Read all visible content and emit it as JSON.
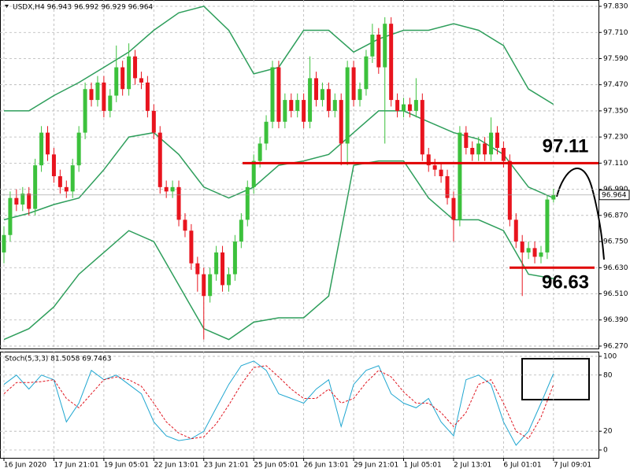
{
  "chart_data": [
    {
      "type": "candlestick",
      "title": "USDX,H4  96.943 96.992 96.929 96.964",
      "up_color": "#3cc13c",
      "down_color": "#e8141e",
      "ylim": [
        96.259,
        97.859
      ],
      "yticks": [
        {
          "value": 97.83,
          "label": "97.830"
        },
        {
          "value": 97.71,
          "label": "97.710"
        },
        {
          "value": 97.59,
          "label": "97.590"
        },
        {
          "value": 97.47,
          "label": "97.470"
        },
        {
          "value": 97.35,
          "label": "97.350"
        },
        {
          "value": 97.23,
          "label": "97.230"
        },
        {
          "value": 97.11,
          "label": "97.110"
        },
        {
          "value": 96.99,
          "label": "96.990"
        },
        {
          "value": 96.87,
          "label": "96.870"
        },
        {
          "value": 96.75,
          "label": "96.750"
        },
        {
          "value": 96.63,
          "label": "96.630"
        },
        {
          "value": 96.51,
          "label": "96.510"
        },
        {
          "value": 96.39,
          "label": "96.390"
        },
        {
          "value": 96.27,
          "label": "96.270"
        }
      ],
      "xticks": [
        {
          "value": 0,
          "label": "16 Jun 2020"
        },
        {
          "value": 8,
          "label": "17 Jun 21:01"
        },
        {
          "value": 16,
          "label": "19 Jun 05:01"
        },
        {
          "value": 24,
          "label": "22 Jun 13:01"
        },
        {
          "value": 32,
          "label": "23 Jun 21:01"
        },
        {
          "value": 40,
          "label": "25 Jun 05:01"
        },
        {
          "value": 48,
          "label": "26 Jun 13:01"
        },
        {
          "value": 56,
          "label": "29 Jun 21:01"
        },
        {
          "value": 64,
          "label": "1 Jul 05:01"
        },
        {
          "value": 72,
          "label": "2 Jul 13:01"
        },
        {
          "value": 80,
          "label": "6 Jul 01:01"
        },
        {
          "value": 88,
          "label": "7 Jul 09:01"
        }
      ],
      "grid": true,
      "ohlc": [
        [
          96.7,
          96.82,
          96.65,
          96.78
        ],
        [
          96.78,
          96.98,
          96.75,
          96.95
        ],
        [
          96.95,
          96.99,
          96.89,
          96.92
        ],
        [
          96.92,
          97.0,
          96.89,
          96.97
        ],
        [
          96.97,
          97.0,
          96.87,
          96.9
        ],
        [
          96.9,
          97.13,
          96.87,
          97.1
        ],
        [
          97.1,
          97.28,
          97.07,
          97.25
        ],
        [
          97.25,
          97.28,
          97.12,
          97.15
        ],
        [
          97.15,
          97.18,
          97.02,
          97.05
        ],
        [
          97.05,
          97.08,
          96.97,
          97.0
        ],
        [
          97.0,
          97.03,
          96.95,
          96.98
        ],
        [
          96.98,
          97.13,
          96.95,
          97.1
        ],
        [
          97.1,
          97.28,
          97.07,
          97.25
        ],
        [
          97.25,
          97.48,
          97.22,
          97.45
        ],
        [
          97.45,
          97.48,
          97.37,
          97.4
        ],
        [
          97.4,
          97.51,
          97.37,
          97.48
        ],
        [
          97.48,
          97.51,
          97.32,
          97.35
        ],
        [
          97.35,
          97.45,
          97.32,
          97.42
        ],
        [
          97.42,
          97.65,
          97.39,
          97.55
        ],
        [
          97.55,
          97.58,
          97.42,
          97.45
        ],
        [
          97.45,
          97.66,
          97.42,
          97.6
        ],
        [
          97.6,
          97.63,
          97.47,
          97.5
        ],
        [
          97.5,
          97.53,
          97.45,
          97.48
        ],
        [
          97.48,
          97.51,
          97.32,
          97.35
        ],
        [
          97.35,
          97.38,
          97.22,
          97.25
        ],
        [
          97.25,
          97.28,
          96.97,
          97.0
        ],
        [
          97.0,
          97.03,
          96.95,
          96.98
        ],
        [
          96.98,
          97.03,
          96.95,
          97.0
        ],
        [
          97.0,
          97.03,
          96.82,
          96.85
        ],
        [
          96.85,
          96.88,
          96.77,
          96.8
        ],
        [
          96.8,
          96.83,
          96.62,
          96.65
        ],
        [
          96.65,
          96.68,
          96.52,
          96.6
        ],
        [
          96.6,
          96.63,
          96.3,
          96.5
        ],
        [
          96.5,
          96.63,
          96.47,
          96.6
        ],
        [
          96.6,
          96.73,
          96.57,
          96.7
        ],
        [
          96.7,
          96.73,
          96.52,
          96.55
        ],
        [
          96.55,
          96.63,
          96.52,
          96.6
        ],
        [
          96.6,
          96.78,
          96.57,
          96.75
        ],
        [
          96.75,
          96.88,
          96.72,
          96.85
        ],
        [
          96.85,
          97.03,
          96.82,
          97.0
        ],
        [
          97.0,
          97.15,
          96.97,
          97.12
        ],
        [
          97.12,
          97.23,
          97.09,
          97.2
        ],
        [
          97.2,
          97.33,
          97.17,
          97.3
        ],
        [
          97.3,
          97.58,
          97.27,
          97.55
        ],
        [
          97.55,
          97.58,
          97.27,
          97.3
        ],
        [
          97.3,
          97.43,
          97.27,
          97.4
        ],
        [
          97.4,
          97.43,
          97.32,
          97.35
        ],
        [
          97.35,
          97.43,
          97.32,
          97.4
        ],
        [
          97.4,
          97.43,
          97.27,
          97.3
        ],
        [
          97.3,
          97.6,
          97.27,
          97.5
        ],
        [
          97.5,
          97.53,
          97.37,
          97.4
        ],
        [
          97.4,
          97.48,
          97.37,
          97.45
        ],
        [
          97.45,
          97.48,
          97.32,
          97.35
        ],
        [
          97.35,
          97.43,
          97.32,
          97.4
        ],
        [
          97.4,
          97.43,
          97.1,
          97.2
        ],
        [
          97.2,
          97.58,
          97.1,
          97.55
        ],
        [
          97.55,
          97.58,
          97.37,
          97.4
        ],
        [
          97.4,
          97.48,
          97.37,
          97.45
        ],
        [
          97.45,
          97.63,
          97.42,
          97.6
        ],
        [
          97.6,
          97.75,
          97.57,
          97.7
        ],
        [
          97.7,
          97.73,
          97.52,
          97.55
        ],
        [
          97.55,
          97.78,
          97.2,
          97.75
        ],
        [
          97.75,
          97.78,
          97.37,
          97.4
        ],
        [
          97.4,
          97.43,
          97.32,
          97.35
        ],
        [
          97.35,
          97.41,
          97.32,
          97.38
        ],
        [
          97.38,
          97.41,
          97.32,
          97.35
        ],
        [
          97.35,
          97.5,
          97.32,
          97.4
        ],
        [
          97.4,
          97.43,
          97.12,
          97.15
        ],
        [
          97.15,
          97.18,
          97.07,
          97.1
        ],
        [
          97.1,
          97.13,
          97.05,
          97.08
        ],
        [
          97.08,
          97.11,
          97.02,
          97.05
        ],
        [
          97.05,
          97.08,
          96.92,
          96.95
        ],
        [
          96.95,
          96.98,
          96.75,
          96.85
        ],
        [
          96.85,
          97.28,
          96.82,
          97.25
        ],
        [
          97.25,
          97.28,
          97.15,
          97.18
        ],
        [
          97.18,
          97.21,
          97.12,
          97.15
        ],
        [
          97.15,
          97.23,
          97.12,
          97.2
        ],
        [
          97.2,
          97.23,
          97.12,
          97.15
        ],
        [
          97.15,
          97.32,
          97.12,
          97.25
        ],
        [
          97.25,
          97.28,
          97.15,
          97.18
        ],
        [
          97.18,
          97.21,
          97.09,
          97.12
        ],
        [
          97.12,
          97.15,
          96.82,
          96.85
        ],
        [
          96.85,
          96.88,
          96.72,
          96.75
        ],
        [
          96.75,
          96.78,
          96.5,
          96.7
        ],
        [
          96.7,
          96.75,
          96.67,
          96.72
        ],
        [
          96.72,
          96.75,
          96.65,
          96.68
        ],
        [
          96.68,
          96.73,
          96.65,
          96.7
        ],
        [
          96.7,
          96.96,
          96.67,
          96.943
        ],
        [
          96.943,
          96.992,
          96.929,
          96.964
        ]
      ],
      "band_x": [
        0,
        4,
        8,
        12,
        16,
        20,
        24,
        28,
        32,
        36,
        40,
        44,
        48,
        52,
        56,
        60,
        64,
        68,
        72,
        76,
        80,
        84,
        88
      ],
      "series": [
        {
          "color": "#2e9e5b",
          "values": [
            97.35,
            97.35,
            97.42,
            97.48,
            97.55,
            97.62,
            97.72,
            97.8,
            97.83,
            97.72,
            97.52,
            97.55,
            97.72,
            97.72,
            97.62,
            97.68,
            97.72,
            97.72,
            97.75,
            97.72,
            97.65,
            97.45,
            97.38
          ]
        },
        {
          "color": "#2e9e5b",
          "values": [
            96.85,
            96.88,
            96.92,
            96.95,
            97.08,
            97.23,
            97.25,
            97.15,
            97.0,
            96.95,
            97.0,
            97.1,
            97.12,
            97.15,
            97.25,
            97.35,
            97.35,
            97.3,
            97.25,
            97.22,
            97.15,
            97.0,
            96.95
          ]
        },
        {
          "color": "#2e9e5b",
          "values": [
            96.3,
            96.35,
            96.45,
            96.6,
            96.7,
            96.8,
            96.75,
            96.55,
            96.35,
            96.3,
            96.38,
            96.4,
            96.4,
            96.5,
            97.1,
            97.12,
            97.12,
            96.95,
            96.85,
            96.85,
            96.8,
            96.6,
            96.58
          ]
        }
      ],
      "last_price": 96.964,
      "levels": [
        {
          "value": 97.11,
          "color": "#e00000"
        },
        {
          "value": 96.63,
          "color": "#e00000"
        }
      ]
    },
    {
      "type": "line",
      "title": "Stoch(5,3,3) 81.5058 69.7463",
      "ylim": [
        -8.4,
        105
      ],
      "yticks": [
        100,
        80,
        20,
        0
      ],
      "grid": true,
      "x": [
        0,
        2,
        4,
        6,
        8,
        10,
        12,
        14,
        16,
        18,
        20,
        22,
        24,
        26,
        28,
        30,
        32,
        34,
        36,
        38,
        40,
        42,
        44,
        46,
        48,
        50,
        52,
        54,
        56,
        58,
        60,
        62,
        64,
        66,
        68,
        70,
        72,
        74,
        76,
        78,
        80,
        82,
        84,
        86,
        88
      ],
      "series": [
        {
          "color": "#1fa6d0",
          "values": [
            70,
            80,
            65,
            80,
            75,
            30,
            50,
            85,
            75,
            80,
            70,
            60,
            30,
            15,
            10,
            12,
            20,
            45,
            70,
            90,
            95,
            85,
            60,
            55,
            50,
            65,
            75,
            25,
            70,
            85,
            90,
            60,
            50,
            45,
            55,
            30,
            15,
            75,
            80,
            70,
            30,
            5,
            20,
            50,
            81.5058
          ]
        },
        {
          "color": "#e0141e",
          "dash": true,
          "values": [
            60,
            72,
            72,
            73,
            75,
            55,
            45,
            60,
            75,
            78,
            75,
            68,
            50,
            30,
            18,
            12,
            14,
            28,
            48,
            70,
            88,
            90,
            78,
            65,
            55,
            55,
            65,
            50,
            55,
            72,
            85,
            78,
            62,
            50,
            50,
            40,
            25,
            40,
            70,
            75,
            50,
            20,
            12,
            35,
            69.7463
          ]
        }
      ]
    }
  ]
}
